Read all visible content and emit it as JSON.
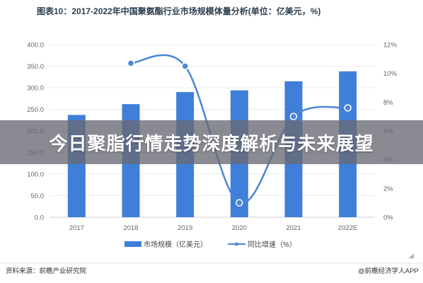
{
  "chart_data": {
    "type": "bar+line",
    "title": "图表10：2017-2022年中国聚氨酯行业市场规模体量分析(单位：亿美元，%)",
    "categories": [
      "2017",
      "2018",
      "2019",
      "2020",
      "2021",
      "2022E"
    ],
    "series": [
      {
        "name": "市场规模（亿美元）",
        "type": "bar",
        "axis": "left",
        "values": [
          237,
          262,
          290,
          294,
          315,
          338
        ]
      },
      {
        "name": "同比增速（%）",
        "type": "line",
        "axis": "right",
        "values": [
          null,
          10.7,
          10.5,
          1.0,
          7.0,
          7.6
        ]
      }
    ],
    "left_axis": {
      "ylim": [
        0,
        400
      ],
      "ticks": [
        "0.0",
        "50.0",
        "100.0",
        "150.0",
        "200.0",
        "250.0",
        "300.0",
        "350.0",
        "400.0"
      ]
    },
    "right_axis": {
      "ylim": [
        0,
        12
      ],
      "ticks": [
        "0%",
        "2%",
        "4%",
        "6%",
        "8%",
        "10%",
        "12%"
      ]
    },
    "grid": true,
    "legend_position": "bottom",
    "colors": {
      "bar": "#3f7fd9",
      "line": "#4a86d8"
    }
  },
  "banner": {
    "text": "今日聚脂行情走势深度解析与未来展望"
  },
  "footer": {
    "source": "资料来源：前瞻产业研究院",
    "brand": "@前瞻经济学人APP"
  },
  "watermark": {
    "text": "前瞻产业研究院"
  }
}
